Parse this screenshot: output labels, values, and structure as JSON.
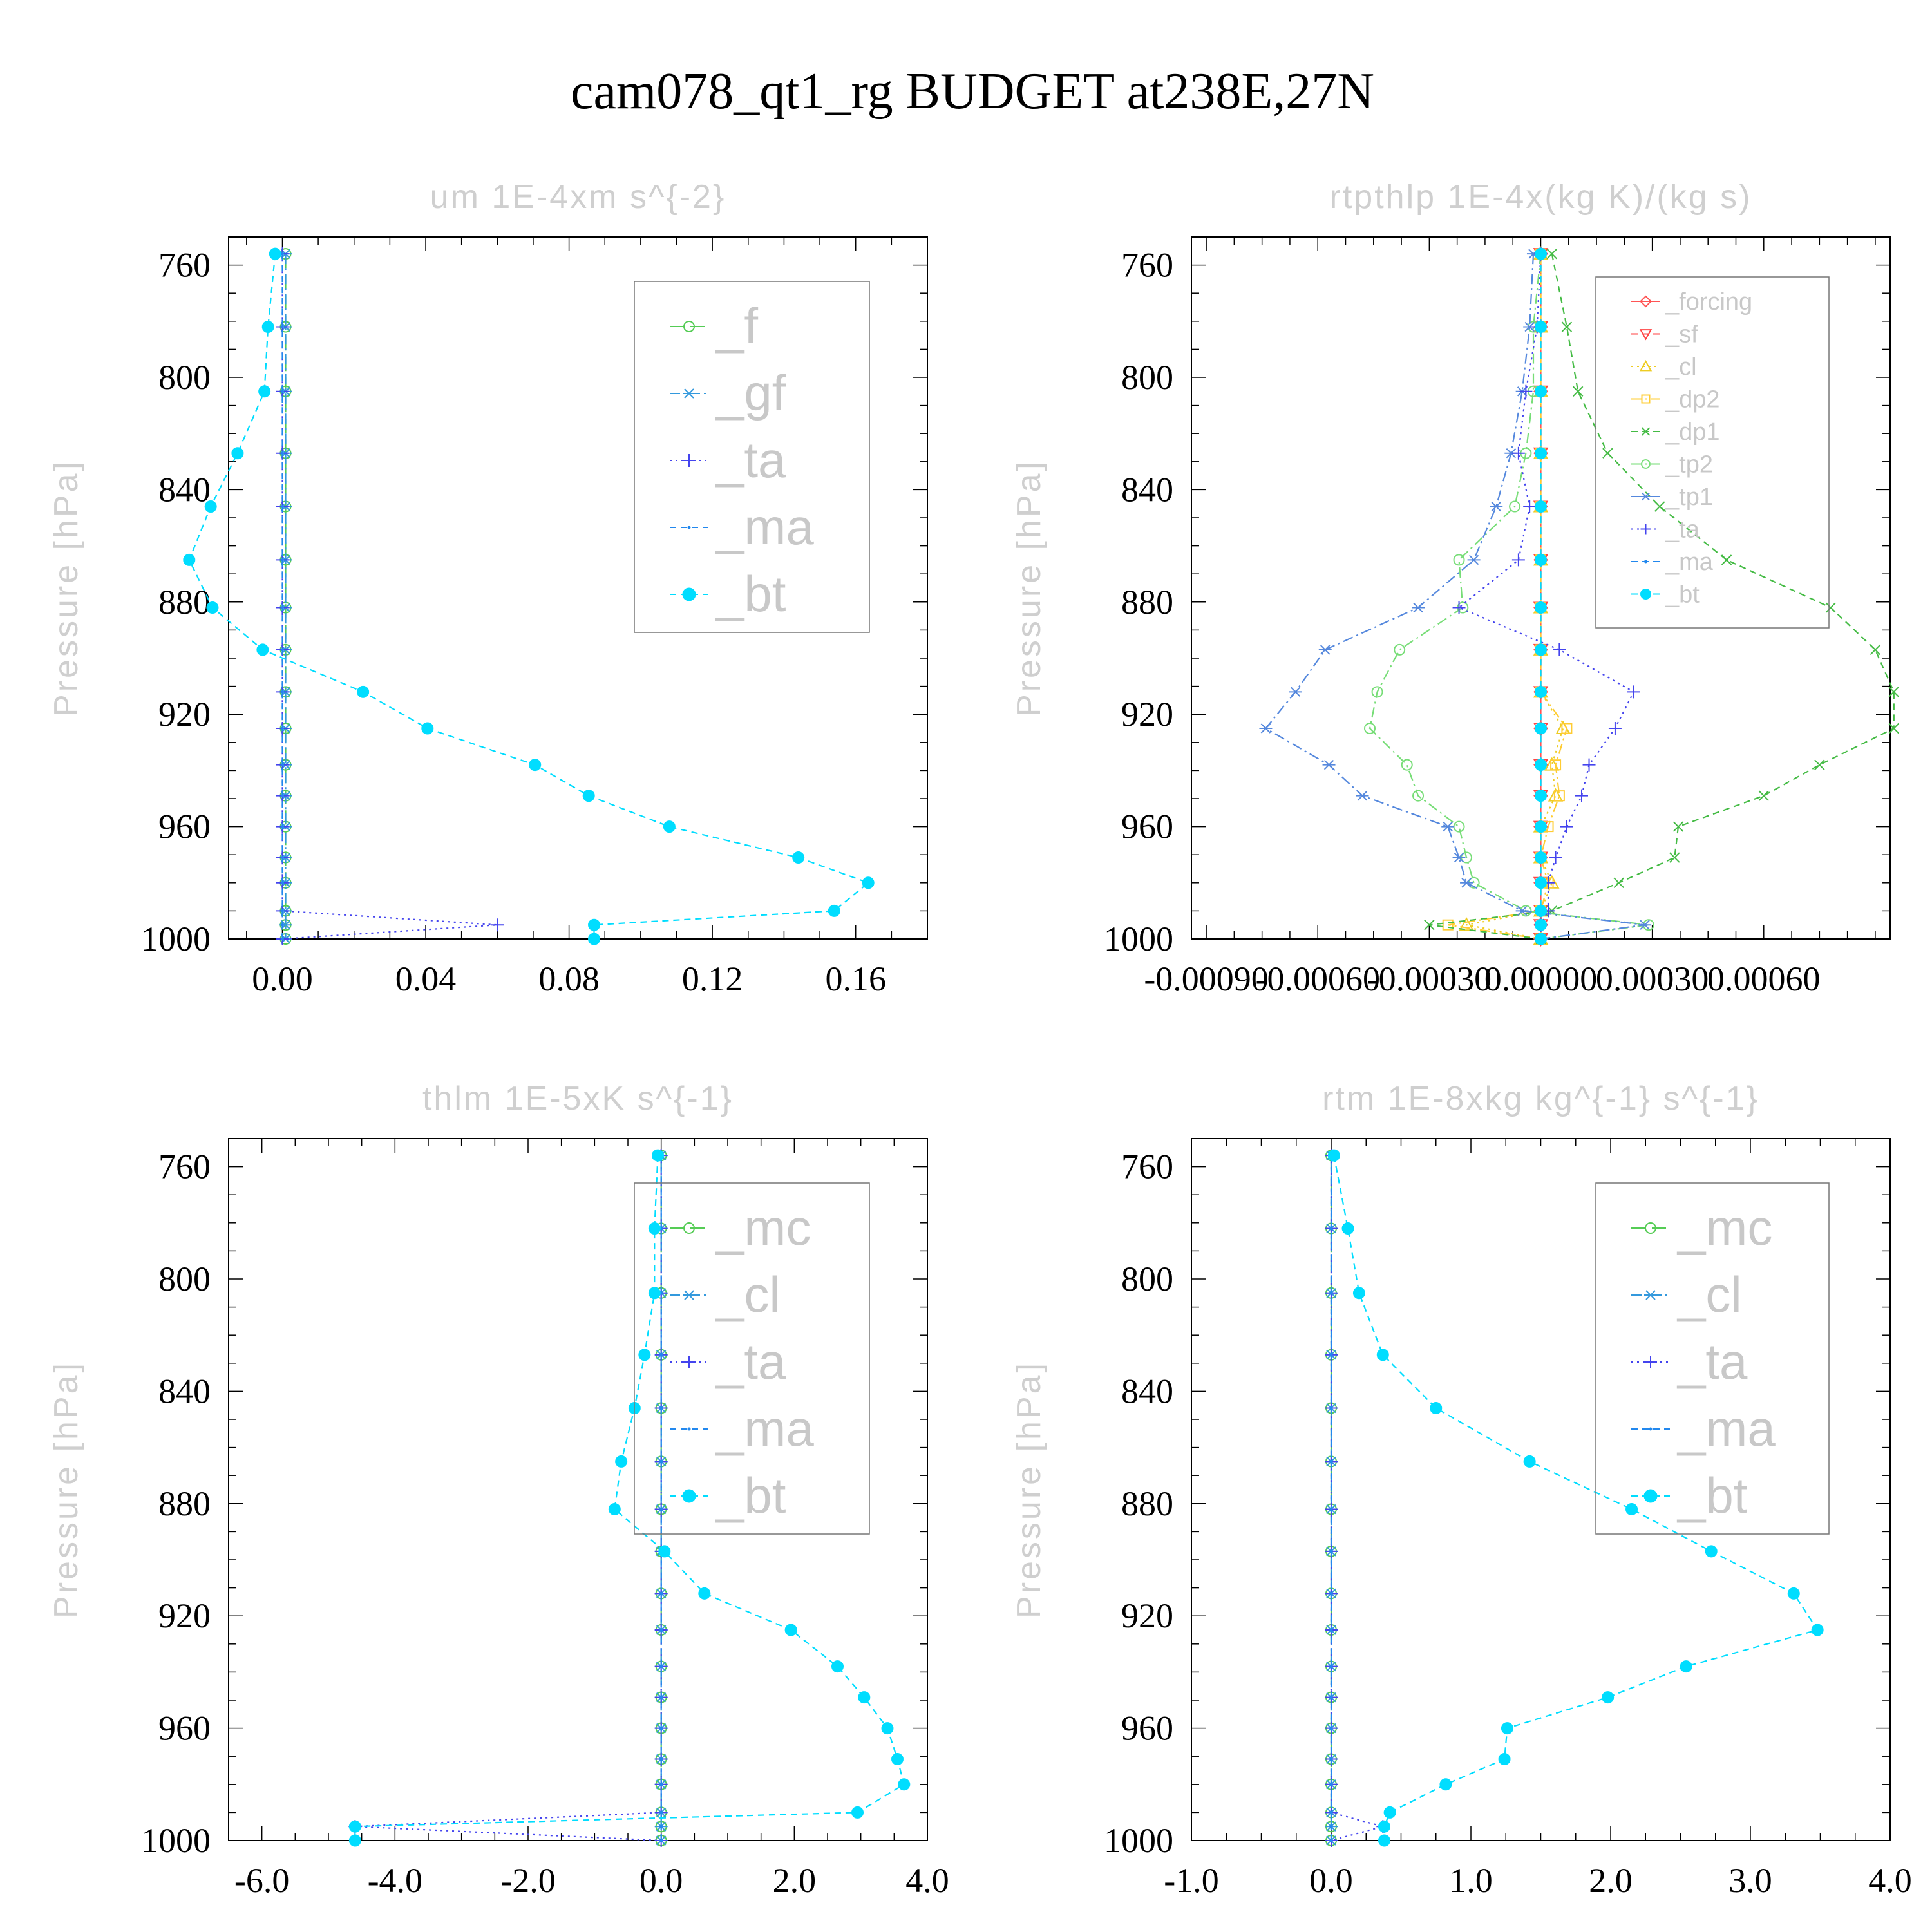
{
  "main_title": "cam078_qt1_rg  BUDGET at238E,27N",
  "chart_data": [
    {
      "type": "line",
      "title": "um   1E-4xm s^{-2}",
      "ylabel": "Pressure [hPa]",
      "xlabel": "",
      "xlim": [
        -0.015,
        0.18
      ],
      "ylim": [
        1000,
        750
      ],
      "xticks": [
        "0.00",
        "0.04",
        "0.08",
        "0.12",
        "0.16"
      ],
      "xtick_values": [
        0.0,
        0.04,
        0.08,
        0.12,
        0.16
      ],
      "yticks": [
        "760",
        "800",
        "840",
        "880",
        "920",
        "960",
        "1000"
      ],
      "ytick_values": [
        760,
        800,
        840,
        880,
        920,
        960,
        1000
      ],
      "legend": {
        "placement": "top-right",
        "style": "big"
      },
      "pressure": [
        756,
        782,
        805,
        827,
        846,
        865,
        882,
        897,
        912,
        925,
        938,
        949,
        960,
        971,
        980,
        990,
        995,
        1000
      ],
      "series": [
        {
          "name": "_f",
          "color": "#55cc55",
          "marker": "circle",
          "dash": "long",
          "values": [
            0.0009,
            0.0009,
            0.0009,
            0.0009,
            0.0009,
            0.0009,
            0.0009,
            0.0009,
            0.0009,
            0.0009,
            0.0009,
            0.0009,
            0.0009,
            0.0009,
            0.0009,
            0.0009,
            0.0009,
            0.0009
          ]
        },
        {
          "name": "_gf",
          "color": "#3399dd",
          "marker": "asterisk",
          "dash": "dashdot",
          "values": [
            0.0009,
            0.0009,
            0.0009,
            0.0009,
            0.0009,
            0.0009,
            0.0009,
            0.0009,
            0.0009,
            0.0009,
            0.0009,
            0.0009,
            0.0009,
            0.0009,
            0.0009,
            0.0009,
            0.0009,
            0.0009
          ]
        },
        {
          "name": "_ta",
          "color": "#4444ee",
          "marker": "plus",
          "dash": "dotted",
          "values": [
            0,
            0,
            0,
            0,
            0,
            0,
            0,
            0,
            0,
            0,
            0,
            0,
            0,
            0,
            0,
            0,
            0.06,
            0
          ]
        },
        {
          "name": "_ma",
          "color": "#2288ee",
          "marker": "dot",
          "dash": "dashed",
          "values": [
            0,
            0,
            0,
            0,
            0,
            0,
            0,
            0,
            0,
            0,
            0,
            0,
            0,
            0,
            0,
            0,
            0,
            0
          ]
        },
        {
          "name": "_bt",
          "color": "#00ddff",
          "marker": "filled-circle",
          "dash": "dashed",
          "values": [
            -0.002,
            -0.004,
            -0.005,
            -0.0125,
            -0.02,
            -0.026,
            -0.0195,
            -0.0055,
            0.0225,
            0.0405,
            0.0705,
            0.0855,
            0.108,
            0.144,
            0.1635,
            0.154,
            0.087,
            0.087
          ]
        }
      ]
    },
    {
      "type": "line",
      "title": "rtpthlp   1E-4x(kg K)/(kg s)",
      "ylabel": "Pressure [hPa]",
      "xlabel": "",
      "xlim": [
        -0.00094,
        0.00094
      ],
      "ylim": [
        1000,
        750
      ],
      "xticks": [
        "-0.00090",
        "-0.00060",
        "-0.00030",
        "0.00000",
        "0.00030",
        "0.00060"
      ],
      "xtick_values": [
        -0.0009,
        -0.0006,
        -0.0003,
        0.0,
        0.0003,
        0.0006
      ],
      "yticks": [
        "760",
        "800",
        "840",
        "880",
        "920",
        "960",
        "1000"
      ],
      "ytick_values": [
        760,
        800,
        840,
        880,
        920,
        960,
        1000
      ],
      "legend": {
        "placement": "top-right",
        "style": "small"
      },
      "pressure": [
        756,
        782,
        805,
        827,
        846,
        865,
        882,
        897,
        912,
        925,
        938,
        949,
        960,
        971,
        980,
        990,
        995,
        1000
      ],
      "series": [
        {
          "name": "_forcing",
          "color": "#ff5555",
          "marker": "diamond",
          "dash": "solid",
          "values": [
            0,
            0,
            0,
            0,
            0,
            0,
            0,
            0,
            0,
            0,
            0,
            0,
            0,
            0,
            0,
            0,
            0,
            0
          ]
        },
        {
          "name": "_sf",
          "color": "#ff4444",
          "marker": "triangle-down",
          "dash": "dashed",
          "values": [
            0,
            0,
            0,
            0,
            0,
            0,
            0,
            0,
            0,
            0,
            0,
            0,
            0,
            0,
            0,
            0,
            0,
            0
          ]
        },
        {
          "name": "_cl",
          "color": "#eecc22",
          "marker": "triangle-up",
          "dash": "dotted",
          "values": [
            0,
            0,
            0,
            0,
            0,
            0,
            0,
            0,
            0,
            6e-05,
            3e-05,
            4e-05,
            0,
            0,
            3e-05,
            0,
            -0.0002,
            0
          ]
        },
        {
          "name": "_dp2",
          "color": "#ffcc33",
          "marker": "square",
          "dash": "dashdot",
          "values": [
            0,
            0,
            0,
            0,
            0,
            0,
            0,
            0,
            0,
            7e-05,
            4e-05,
            5e-05,
            2e-05,
            0,
            2e-05,
            0,
            -0.00025,
            0
          ]
        },
        {
          "name": "_dp1",
          "color": "#44bb44",
          "marker": "x",
          "dash": "dashed",
          "values": [
            3e-05,
            7e-05,
            0.0001,
            0.00018,
            0.00032,
            0.0005,
            0.00078,
            0.0009,
            0.00095,
            0.00095,
            0.00075,
            0.0006,
            0.00037,
            0.00036,
            0.00021,
            3e-05,
            -0.0003,
            0
          ]
        },
        {
          "name": "_tp2",
          "color": "#77dd77",
          "marker": "circle",
          "dash": "dashdot",
          "values": [
            0,
            -2e-05,
            -2e-05,
            -4e-05,
            -7e-05,
            -0.00022,
            -0.00021,
            -0.00038,
            -0.00044,
            -0.00046,
            -0.00036,
            -0.00033,
            -0.00022,
            -0.0002,
            -0.00018,
            -4e-05,
            0.00029,
            0
          ]
        },
        {
          "name": "_tp1",
          "color": "#5588dd",
          "marker": "asterisk",
          "dash": "dashdot",
          "values": [
            -2e-05,
            -3e-05,
            -5e-05,
            -8e-05,
            -0.00012,
            -0.00018,
            -0.00033,
            -0.00058,
            -0.00066,
            -0.00074,
            -0.00057,
            -0.00048,
            -0.00025,
            -0.00022,
            -0.0002,
            -5e-05,
            0.00028,
            0
          ]
        },
        {
          "name": "_ta",
          "color": "#4444ee",
          "marker": "plus",
          "dash": "dotted",
          "values": [
            0,
            -1e-05,
            -4e-05,
            -6e-05,
            -3e-05,
            -6e-05,
            -0.00022,
            5e-05,
            0.00025,
            0.0002,
            0.00013,
            0.00011,
            7e-05,
            4e-05,
            2e-05,
            2e-05,
            0,
            0
          ]
        },
        {
          "name": "_ma",
          "color": "#2288ee",
          "marker": "dot",
          "dash": "dashed",
          "values": [
            0,
            0,
            0,
            0,
            0,
            0,
            0,
            0,
            0,
            0,
            0,
            0,
            0,
            0,
            0,
            0,
            0,
            0
          ]
        },
        {
          "name": "_bt",
          "color": "#00ddff",
          "marker": "filled-circle",
          "dash": "dashed",
          "values": [
            0,
            0,
            0,
            0,
            0,
            0,
            0,
            0,
            0,
            0,
            0,
            0,
            0,
            0,
            0,
            0,
            0,
            0
          ]
        }
      ]
    },
    {
      "type": "line",
      "title": "thlm   1E-5xK s^{-1}",
      "ylabel": "Pressure [hPa]",
      "xlabel": "",
      "xlim": [
        -6.5,
        4.0
      ],
      "ylim": [
        1000,
        750
      ],
      "xticks": [
        "-6.0",
        "-4.0",
        "-2.0",
        "0.0",
        "2.0",
        "4.0"
      ],
      "xtick_values": [
        -6.0,
        -4.0,
        -2.0,
        0.0,
        2.0,
        4.0
      ],
      "yticks": [
        "760",
        "800",
        "840",
        "880",
        "920",
        "960",
        "1000"
      ],
      "ytick_values": [
        760,
        800,
        840,
        880,
        920,
        960,
        1000
      ],
      "legend": {
        "placement": "top-right",
        "style": "big"
      },
      "pressure": [
        756,
        782,
        805,
        827,
        846,
        865,
        882,
        897,
        912,
        925,
        938,
        949,
        960,
        971,
        980,
        990,
        995,
        1000
      ],
      "series": [
        {
          "name": "_mc",
          "color": "#55cc55",
          "marker": "circle",
          "dash": "long",
          "values": [
            0,
            0,
            0,
            0,
            0,
            0,
            0,
            0,
            0,
            0,
            0,
            0,
            0,
            0,
            0,
            0,
            0,
            0
          ]
        },
        {
          "name": "_cl",
          "color": "#3399dd",
          "marker": "asterisk",
          "dash": "dashdot",
          "values": [
            0,
            0,
            0,
            0,
            0,
            0,
            0,
            0,
            0,
            0,
            0,
            0,
            0,
            0,
            0,
            0,
            0,
            0
          ]
        },
        {
          "name": "_ta",
          "color": "#4444ee",
          "marker": "plus",
          "dash": "dotted",
          "values": [
            0,
            0,
            0,
            0,
            0,
            0,
            0,
            0,
            0,
            0,
            0,
            0,
            0,
            0,
            0,
            0,
            -4.6,
            0
          ]
        },
        {
          "name": "_ma",
          "color": "#2288ee",
          "marker": "dot",
          "dash": "dashed",
          "values": [
            0,
            0,
            0,
            0,
            0,
            0,
            0,
            0,
            0,
            0,
            0,
            0,
            0,
            0,
            0,
            0,
            0,
            0
          ]
        },
        {
          "name": "_bt",
          "color": "#00ddff",
          "marker": "filled-circle",
          "dash": "dashed",
          "values": [
            -0.05,
            -0.1,
            -0.1,
            -0.25,
            -0.4,
            -0.6,
            -0.7,
            0.05,
            0.65,
            1.95,
            2.65,
            3.05,
            3.4,
            3.55,
            3.65,
            2.95,
            -4.6,
            -4.6
          ]
        }
      ]
    },
    {
      "type": "line",
      "title": "rtm   1E-8xkg kg^{-1} s^{-1}",
      "ylabel": "Pressure [hPa]",
      "xlabel": "",
      "xlim": [
        -1.0,
        4.0
      ],
      "ylim": [
        1000,
        750
      ],
      "xticks": [
        "-1.0",
        "0.0",
        "1.0",
        "2.0",
        "3.0",
        "4.0"
      ],
      "xtick_values": [
        -1.0,
        0.0,
        1.0,
        2.0,
        3.0,
        4.0
      ],
      "yticks": [
        "760",
        "800",
        "840",
        "880",
        "920",
        "960",
        "1000"
      ],
      "ytick_values": [
        760,
        800,
        840,
        880,
        920,
        960,
        1000
      ],
      "legend": {
        "placement": "top-right",
        "style": "big"
      },
      "pressure": [
        756,
        782,
        805,
        827,
        846,
        865,
        882,
        897,
        912,
        925,
        938,
        949,
        960,
        971,
        980,
        990,
        995,
        1000
      ],
      "series": [
        {
          "name": "_mc",
          "color": "#55cc55",
          "marker": "circle",
          "dash": "long",
          "values": [
            0,
            0,
            0,
            0,
            0,
            0,
            0,
            0,
            0,
            0,
            0,
            0,
            0,
            0,
            0,
            0,
            0,
            0
          ]
        },
        {
          "name": "_cl",
          "color": "#3399dd",
          "marker": "asterisk",
          "dash": "dashdot",
          "values": [
            0,
            0,
            0,
            0,
            0,
            0,
            0,
            0,
            0,
            0,
            0,
            0,
            0,
            0,
            0,
            0,
            0,
            0
          ]
        },
        {
          "name": "_ta",
          "color": "#4444ee",
          "marker": "plus",
          "dash": "dotted",
          "values": [
            0,
            0,
            0,
            0,
            0,
            0,
            0,
            0,
            0,
            0,
            0,
            0,
            0,
            0,
            0,
            0,
            0.37,
            0
          ]
        },
        {
          "name": "_ma",
          "color": "#2288ee",
          "marker": "dot",
          "dash": "dashed",
          "values": [
            0,
            0,
            0,
            0,
            0,
            0,
            0,
            0,
            0,
            0,
            0,
            0,
            0,
            0,
            0,
            0,
            0,
            0
          ]
        },
        {
          "name": "_bt",
          "color": "#00ddff",
          "marker": "filled-circle",
          "dash": "dashed",
          "values": [
            0.02,
            0.12,
            0.2,
            0.37,
            0.75,
            1.42,
            2.15,
            2.72,
            3.31,
            3.48,
            2.54,
            1.98,
            1.26,
            1.24,
            0.82,
            0.42,
            0.38,
            0.38
          ]
        }
      ]
    }
  ]
}
